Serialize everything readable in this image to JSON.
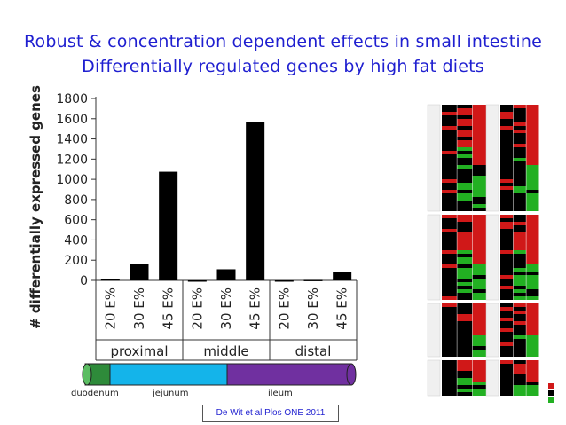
{
  "slide": {
    "title_line1": "Robust & concentration dependent effects in small intestine",
    "title_line2": "Differentially regulated genes by high fat diets",
    "citation": "De Wit et al Plos ONE 2011"
  },
  "intestine": {
    "segments": [
      {
        "name": "duodenum",
        "color": "#2e8b3a"
      },
      {
        "name": "jejunum",
        "color": "#14b4ea"
      },
      {
        "name": "ileum",
        "color": "#7030a0"
      }
    ]
  },
  "chart_data": {
    "type": "bar",
    "ylabel": "# differentially expressed genes",
    "ylim": [
      0,
      1800
    ],
    "yticks": [
      0,
      200,
      400,
      600,
      800,
      1000,
      1200,
      1400,
      1600,
      1800
    ],
    "bar_color": "#000000",
    "groups": [
      {
        "name": "proximal",
        "categories": [
          "20 E%",
          "30 E%",
          "45 E%"
        ],
        "values": [
          10,
          160,
          1075
        ]
      },
      {
        "name": "middle",
        "categories": [
          "20 E%",
          "30 E%",
          "45 E%"
        ],
        "values": [
          0,
          110,
          1565
        ]
      },
      {
        "name": "distal",
        "categories": [
          "20 E%",
          "30 E%",
          "45 E%"
        ],
        "values": [
          0,
          5,
          85
        ]
      }
    ]
  },
  "heatmap": {
    "colors": {
      "up": "#d01818",
      "neutral": "#000000",
      "down": "#22b022"
    }
  }
}
